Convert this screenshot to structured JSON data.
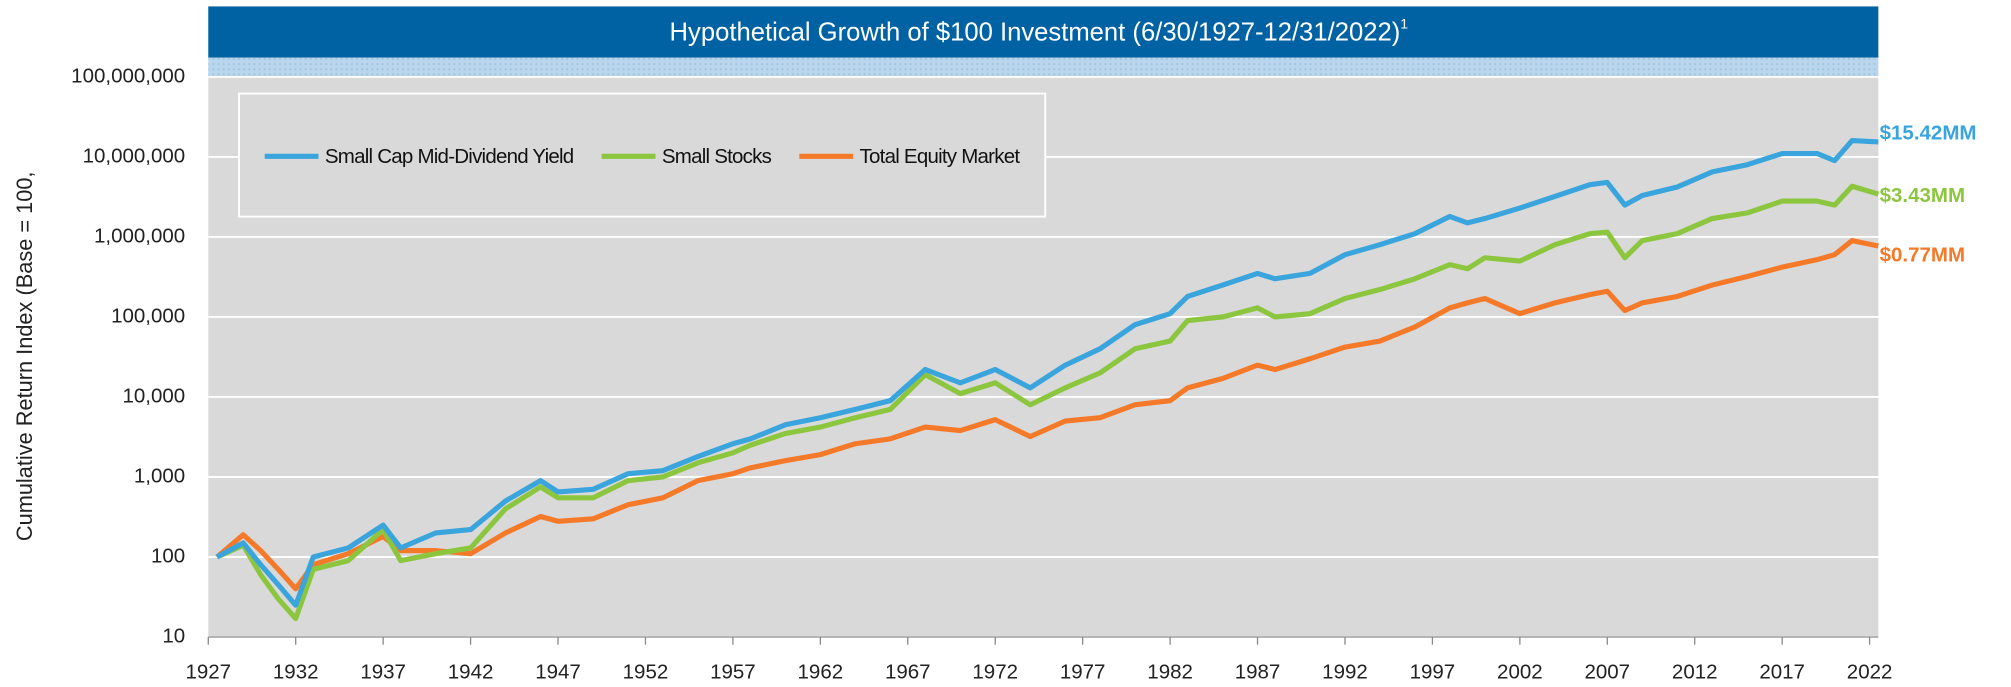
{
  "chart_data": {
    "type": "line",
    "title": "Hypothetical Growth of $100 Investment (6/30/1927-12/31/2022)",
    "title_note": "1",
    "y_label": "Cumulative Return Index (Base = 100,",
    "log_y": true,
    "grid": true,
    "legend": "top-left",
    "xlim": [
      1927,
      2022.5
    ],
    "xticks": [
      1927,
      1932,
      1937,
      1942,
      1947,
      1952,
      1957,
      1962,
      1967,
      1972,
      1977,
      1982,
      1987,
      1992,
      1997,
      2002,
      2007,
      2012,
      2017,
      2022
    ],
    "ylim": [
      10,
      100000000
    ],
    "yticks": [
      10,
      100,
      {
        "value": 1000,
        "label": "1,000"
      },
      {
        "value": 10000,
        "label": "10,000"
      },
      {
        "value": 100000,
        "label": "100,000"
      },
      {
        "value": 1000000,
        "label": "1,000,000"
      },
      {
        "value": 10000000,
        "label": "10,000,000"
      },
      {
        "value": 100000000,
        "label": "100,000,000"
      }
    ],
    "x": [
      1927.5,
      1929,
      1930,
      1931,
      1932,
      1933,
      1935,
      1937,
      1938,
      1940,
      1942,
      1944,
      1946,
      1947,
      1949,
      1951,
      1953,
      1955,
      1957,
      1958,
      1960,
      1962,
      1964,
      1966,
      1968,
      1970,
      1972,
      1974,
      1976,
      1978,
      1980,
      1982,
      1983,
      1985,
      1987,
      1988,
      1990,
      1992,
      1994,
      1996,
      1998,
      1999,
      2000,
      2002,
      2004,
      2006,
      2007,
      2008,
      2009,
      2011,
      2013,
      2015,
      2017,
      2019,
      2020,
      2021,
      2022.5
    ],
    "series": [
      {
        "name": "Small Cap Mid-Dividend Yield",
        "color": "#3aa4dc",
        "end_label": "$15.42MM",
        "values": [
          100,
          150,
          80,
          45,
          25,
          100,
          130,
          250,
          130,
          200,
          220,
          500,
          900,
          650,
          700,
          1100,
          1200,
          1800,
          2600,
          3000,
          4500,
          5500,
          7000,
          9000,
          22000,
          15000,
          22000,
          13000,
          25000,
          40000,
          80000,
          110000,
          180000,
          250000,
          350000,
          300000,
          350000,
          600000,
          800000,
          1100000,
          1800000,
          1500000,
          1700000,
          2300000,
          3200000,
          4500000,
          4800000,
          2500000,
          3300000,
          4200000,
          6500000,
          8000000,
          11000000,
          11000000,
          9000000,
          16000000,
          15420000
        ]
      },
      {
        "name": "Small Stocks",
        "color": "#8cc63f",
        "end_label": "$3.43MM",
        "values": [
          100,
          140,
          60,
          30,
          17,
          70,
          90,
          220,
          90,
          110,
          130,
          400,
          750,
          550,
          550,
          900,
          1000,
          1500,
          2000,
          2500,
          3500,
          4200,
          5500,
          7000,
          19000,
          11000,
          15000,
          8000,
          13000,
          20000,
          40000,
          50000,
          90000,
          100000,
          130000,
          100000,
          110000,
          170000,
          220000,
          300000,
          450000,
          400000,
          550000,
          500000,
          800000,
          1100000,
          1150000,
          550000,
          900000,
          1100000,
          1700000,
          2000000,
          2800000,
          2800000,
          2500000,
          4300000,
          3430000
        ]
      },
      {
        "name": "Total Equity Market",
        "color": "#f47a2a",
        "end_label": "$0.77MM",
        "values": [
          100,
          190,
          120,
          70,
          40,
          80,
          110,
          180,
          120,
          120,
          110,
          200,
          320,
          280,
          300,
          450,
          550,
          900,
          1100,
          1300,
          1600,
          1900,
          2600,
          3000,
          4200,
          3800,
          5200,
          3200,
          5000,
          5500,
          8000,
          9000,
          13000,
          17000,
          25000,
          22000,
          30000,
          42000,
          50000,
          75000,
          130000,
          150000,
          170000,
          110000,
          150000,
          190000,
          210000,
          120000,
          150000,
          180000,
          250000,
          320000,
          420000,
          520000,
          600000,
          900000,
          770000
        ]
      }
    ]
  }
}
